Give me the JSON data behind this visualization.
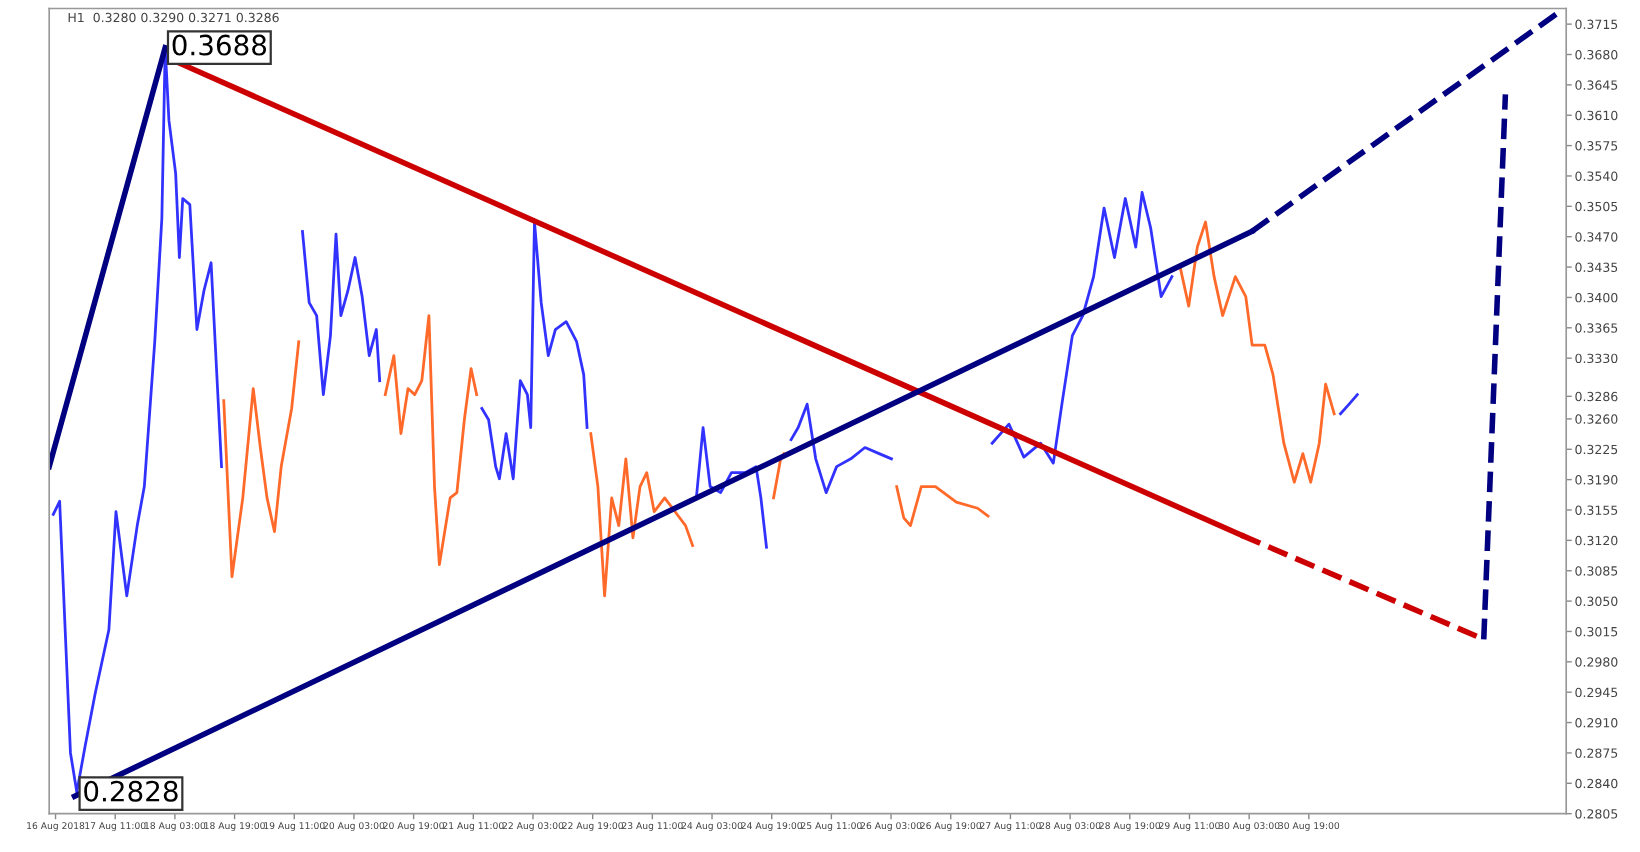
{
  "chart_data": {
    "type": "line",
    "title": "H1  0.3280 0.3290 0.3271 0.3286",
    "xlim": [
      "2018-08-16T17:18",
      "2018-09-02T16:00"
    ],
    "xticks": [
      {
        "value": "2018-08-16T19:00",
        "label": "16 Aug 2018"
      },
      {
        "value": "2018-08-17T11:00",
        "label": "17 Aug 11:00"
      },
      {
        "value": "2018-08-18T03:00",
        "label": "18 Aug 03:00"
      },
      {
        "value": "2018-08-18T19:00",
        "label": "18 Aug 19:00"
      },
      {
        "value": "2018-08-19T11:00",
        "label": "19 Aug 11:00"
      },
      {
        "value": "2018-08-20T03:00",
        "label": "20 Aug 03:00"
      },
      {
        "value": "2018-08-20T19:00",
        "label": "20 Aug 19:00"
      },
      {
        "value": "2018-08-21T11:00",
        "label": "21 Aug 11:00"
      },
      {
        "value": "2018-08-22T03:00",
        "label": "22 Aug 03:00"
      },
      {
        "value": "2018-08-22T19:00",
        "label": "22 Aug 19:00"
      },
      {
        "value": "2018-08-23T11:00",
        "label": "23 Aug 11:00"
      },
      {
        "value": "2018-08-24T03:00",
        "label": "24 Aug 03:00"
      },
      {
        "value": "2018-08-24T19:00",
        "label": "24 Aug 19:00"
      },
      {
        "value": "2018-08-25T11:00",
        "label": "25 Aug 11:00"
      },
      {
        "value": "2018-08-26T03:00",
        "label": "26 Aug 03:00"
      },
      {
        "value": "2018-08-26T19:00",
        "label": "26 Aug 19:00"
      },
      {
        "value": "2018-08-27T11:00",
        "label": "27 Aug 11:00"
      },
      {
        "value": "2018-08-28T03:00",
        "label": "28 Aug 03:00"
      },
      {
        "value": "2018-08-28T19:00",
        "label": "28 Aug 19:00"
      },
      {
        "value": "2018-08-29T11:00",
        "label": "29 Aug 11:00"
      },
      {
        "value": "2018-08-30T03:00",
        "label": "30 Aug 03:00"
      },
      {
        "value": "2018-08-30T19:00",
        "label": "30 Aug 19:00"
      }
    ],
    "ylim": [
      0.2805,
      0.3733
    ],
    "yticks": [
      0.3715,
      {
        "value": 0.368,
        "label": "0.3680"
      },
      0.3645,
      {
        "value": 0.361,
        "label": "0.3610"
      },
      0.3575,
      {
        "value": 0.354,
        "label": "0.3540"
      },
      0.3505,
      {
        "value": 0.347,
        "label": "0.3470"
      },
      0.3435,
      {
        "value": 0.34,
        "label": "0.3400"
      },
      0.3365,
      {
        "value": 0.333,
        "label": "0.3330"
      },
      0.3286,
      {
        "value": 0.326,
        "label": "0.3260"
      },
      0.3225,
      {
        "value": 0.319,
        "label": "0.3190"
      },
      0.3155,
      {
        "value": 0.312,
        "label": "0.3120"
      },
      0.3085,
      {
        "value": 0.305,
        "label": "0.3050"
      },
      0.3015,
      {
        "value": 0.298,
        "label": "0.2980"
      },
      0.2945,
      {
        "value": 0.291,
        "label": "0.2910"
      },
      0.2875,
      {
        "value": 0.284,
        "label": "0.2840"
      },
      0.2805
    ],
    "annotations": [
      {
        "text": "0.3688",
        "x": "2018-08-18T00:24",
        "y": 0.3688
      },
      {
        "text": "0.2828",
        "x": "2018-08-17T00:42",
        "y": 0.2828
      }
    ],
    "series": [
      {
        "color": "#3232ff",
        "x": [
          "2018-08-16T18:24",
          "2018-08-16T20:06",
          "2018-08-16T23:00",
          "2018-08-17T00:42",
          "2018-08-17T02:54",
          "2018-08-17T05:36",
          "2018-08-17T07:24",
          "2018-08-17T09:18",
          "2018-08-17T11:12",
          "2018-08-17T14:06",
          "2018-08-17T16:54",
          "2018-08-17T18:48",
          "2018-08-17T21:36",
          "2018-08-17T23:30",
          "2018-08-18T00:24",
          "2018-08-18T01:24",
          "2018-08-18T03:12",
          "2018-08-18T04:12",
          "2018-08-18T05:06",
          "2018-08-18T07:00",
          "2018-08-18T08:54",
          "2018-08-18T10:48",
          "2018-08-18T12:42",
          "2018-08-18T15:30"
        ],
        "values": [
          0.315,
          0.3165,
          0.2875,
          0.283,
          0.2882,
          0.2943,
          0.2979,
          0.3017,
          0.3153,
          0.3056,
          0.3137,
          0.3182,
          0.3349,
          0.3491,
          0.3688,
          0.3604,
          0.3543,
          0.3446,
          0.3514,
          0.3507,
          0.3363,
          0.3408,
          0.344,
          0.3205
        ]
      },
      {
        "color": "#ff6a2a",
        "x": [
          "2018-08-18T16:06",
          "2018-08-18T18:18",
          "2018-08-18T21:12",
          "2018-08-19T00:00",
          "2018-08-19T01:54",
          "2018-08-19T03:42",
          "2018-08-19T05:42",
          "2018-08-19T07:30",
          "2018-08-19T10:18",
          "2018-08-19T12:12"
        ],
        "values": [
          0.3281,
          0.3078,
          0.3169,
          0.3295,
          0.3227,
          0.3169,
          0.313,
          0.3205,
          0.3272,
          0.3349
        ]
      },
      {
        "color": "#3232ff",
        "x": [
          "2018-08-19T13:12",
          "2018-08-19T15:00",
          "2018-08-19T17:00",
          "2018-08-19T18:48",
          "2018-08-19T20:42",
          "2018-08-19T22:12",
          "2018-08-19T23:30",
          "2018-08-20T01:24",
          "2018-08-20T03:18",
          "2018-08-20T05:12",
          "2018-08-20T07:06",
          "2018-08-20T09:00",
          "2018-08-20T09:54"
        ],
        "values": [
          0.3476,
          0.3394,
          0.3379,
          0.3288,
          0.3356,
          0.3473,
          0.3379,
          0.3408,
          0.3446,
          0.3401,
          0.3333,
          0.3363,
          0.3304
        ]
      },
      {
        "color": "#ff6a2a",
        "x": [
          "2018-08-20T11:24",
          "2018-08-20T13:42",
          "2018-08-20T15:36",
          "2018-08-20T17:30",
          "2018-08-20T19:18",
          "2018-08-20T21:12",
          "2018-08-20T23:06",
          "2018-08-21T00:36",
          "2018-08-21T01:54",
          "2018-08-21T04:48",
          "2018-08-21T06:36",
          "2018-08-21T08:36",
          "2018-08-21T10:24",
          "2018-08-21T11:54"
        ],
        "values": [
          0.3288,
          0.3333,
          0.3243,
          0.3295,
          0.3288,
          0.3304,
          0.3379,
          0.3182,
          0.3092,
          0.3169,
          0.3175,
          0.3259,
          0.3318,
          0.3288
        ]
      },
      {
        "color": "#3232ff",
        "x": [
          "2018-08-21T13:18",
          "2018-08-21T15:06",
          "2018-08-21T17:00",
          "2018-08-21T18:00",
          "2018-08-21T19:48",
          "2018-08-21T21:42",
          "2018-08-21T23:36",
          "2018-08-22T01:30",
          "2018-08-22T02:24",
          "2018-08-22T03:24",
          "2018-08-22T05:12",
          "2018-08-22T07:06",
          "2018-08-22T09:00",
          "2018-08-22T11:54",
          "2018-08-22T14:42",
          "2018-08-22T16:36",
          "2018-08-22T17:30"
        ],
        "values": [
          0.3272,
          0.3259,
          0.3205,
          0.3191,
          0.3243,
          0.3191,
          0.3304,
          0.3288,
          0.325,
          0.3487,
          0.3394,
          0.3333,
          0.3363,
          0.3372,
          0.3349,
          0.3311,
          0.325
        ]
      },
      {
        "color": "#ff6a2a",
        "x": [
          "2018-08-22T18:30",
          "2018-08-22T20:24",
          "2018-08-22T22:12",
          "2018-08-23T00:06",
          "2018-08-23T02:00",
          "2018-08-23T03:54",
          "2018-08-23T05:48",
          "2018-08-23T07:42",
          "2018-08-23T09:30",
          "2018-08-23T11:30",
          "2018-08-23T14:18",
          "2018-08-23T17:06",
          "2018-08-23T19:54",
          "2018-08-23T21:48"
        ],
        "values": [
          0.3243,
          0.3182,
          0.3056,
          0.3169,
          0.3137,
          0.3214,
          0.3123,
          0.3182,
          0.3198,
          0.3153,
          0.3169,
          0.3153,
          0.3137,
          0.3114
        ]
      },
      {
        "color": "#3232ff",
        "x": [
          "2018-08-23T22:48",
          "2018-08-24T00:36",
          "2018-08-24T02:30",
          "2018-08-24T05:18",
          "2018-08-24T08:12",
          "2018-08-24T11:54",
          "2018-08-24T14:48",
          "2018-08-24T16:06",
          "2018-08-24T17:36"
        ],
        "values": [
          0.3169,
          0.325,
          0.3182,
          0.3175,
          0.3198,
          0.3198,
          0.3205,
          0.3169,
          0.3112
        ]
      },
      {
        "color": "#ff6a2a",
        "x": [
          "2018-08-24T19:30",
          "2018-08-24T21:24",
          "2018-08-24T22:18"
        ],
        "values": [
          0.3169,
          0.3214,
          0.322
        ]
      },
      {
        "color": "#3232ff",
        "x": [
          "2018-08-25T00:12",
          "2018-08-25T02:06",
          "2018-08-25T04:30",
          "2018-08-25T06:48",
          "2018-08-25T09:36",
          "2018-08-25T12:24",
          "2018-08-25T16:12",
          "2018-08-25T20:00",
          "2018-08-25T23:48",
          "2018-08-26T03:06"
        ],
        "values": [
          0.3236,
          0.325,
          0.3277,
          0.3214,
          0.3175,
          0.3205,
          0.3214,
          0.3227,
          0.322,
          0.3214
        ]
      },
      {
        "color": "#ff6a2a",
        "x": [
          "2018-08-26T04:30",
          "2018-08-26T06:24",
          "2018-08-26T08:12",
          "2018-08-26T11:06",
          "2018-08-26T14:54",
          "2018-08-26T20:30",
          "2018-08-27T02:12",
          "2018-08-27T05:00"
        ],
        "values": [
          0.3182,
          0.3146,
          0.3137,
          0.3182,
          0.3182,
          0.3164,
          0.3157,
          0.3148
        ]
      },
      {
        "color": "#3232ff",
        "x": [
          "2018-08-27T06:06",
          "2018-08-27T10:36",
          "2018-08-27T14:36",
          "2018-08-27T19:06",
          "2018-08-27T22:30",
          "2018-08-28T00:48",
          "2018-08-28T03:36",
          "2018-08-28T06:24",
          "2018-08-28T09:18",
          "2018-08-28T12:06",
          "2018-08-28T14:54",
          "2018-08-28T17:48",
          "2018-08-28T20:36",
          "2018-08-28T22:18",
          "2018-08-29T00:36",
          "2018-08-29T03:24",
          "2018-08-29T06:18"
        ],
        "values": [
          0.3232,
          0.3254,
          0.3216,
          0.3232,
          0.3209,
          0.3277,
          0.3356,
          0.3379,
          0.3424,
          0.3503,
          0.3446,
          0.3514,
          0.3458,
          0.3521,
          0.348,
          0.3401,
          0.3424
        ]
      },
      {
        "color": "#ff6a2a",
        "x": [
          "2018-08-29T08:30",
          "2018-08-29T10:48",
          "2018-08-29T13:06",
          "2018-08-29T15:18",
          "2018-08-29T17:36",
          "2018-08-29T19:54",
          "2018-08-29T23:18",
          "2018-08-30T02:06",
          "2018-08-30T03:48",
          "2018-08-30T07:12",
          "2018-08-30T09:24",
          "2018-08-30T12:18",
          "2018-08-30T15:06",
          "2018-08-30T17:24",
          "2018-08-30T19:30",
          "2018-08-30T21:48",
          "2018-08-30T23:30",
          "2018-08-31T01:48"
        ],
        "values": [
          0.3435,
          0.339,
          0.3458,
          0.3487,
          0.3424,
          0.3379,
          0.3424,
          0.3401,
          0.3345,
          0.3345,
          0.3311,
          0.3232,
          0.3187,
          0.322,
          0.3187,
          0.3232,
          0.33,
          0.3266
        ]
      },
      {
        "color": "#3232ff",
        "x": [
          "2018-08-31T03:30",
          "2018-08-31T05:48",
          "2018-08-31T08:00"
        ],
        "values": [
          0.3266,
          0.3277,
          0.3288
        ]
      },
      {
        "color": "#000080",
        "line_style": "solid",
        "x": [
          "2018-08-16T17:18",
          "2018-08-18T00:24"
        ],
        "values": [
          0.3205,
          0.3688
        ]
      },
      {
        "color": "#cc0000",
        "line_style": "solid",
        "x": [
          "2018-08-18T03:12",
          "2018-08-30T00:54"
        ],
        "values": [
          0.3672,
          0.3126
        ]
      },
      {
        "color": "#cc0000",
        "line_style": "dashed",
        "x": [
          "2018-08-30T00:54",
          "2018-09-01T17:54"
        ],
        "values": [
          0.3126,
          0.3006
        ]
      },
      {
        "color": "#000080",
        "line_style": "solid",
        "x": [
          "2018-08-17T00:06",
          "2018-08-30T03:42"
        ],
        "values": [
          0.2825,
          0.3476
        ]
      },
      {
        "color": "#000080",
        "line_style": "dashed",
        "x": [
          "2018-08-30T03:42",
          "2018-09-02T13:48"
        ],
        "values": [
          0.3476,
          0.3728
        ]
      },
      {
        "color": "#000080",
        "line_style": "dashed",
        "x": [
          "2018-09-01T17:54",
          "2018-09-01T23:42"
        ],
        "values": [
          0.3006,
          0.3634
        ]
      }
    ]
  }
}
